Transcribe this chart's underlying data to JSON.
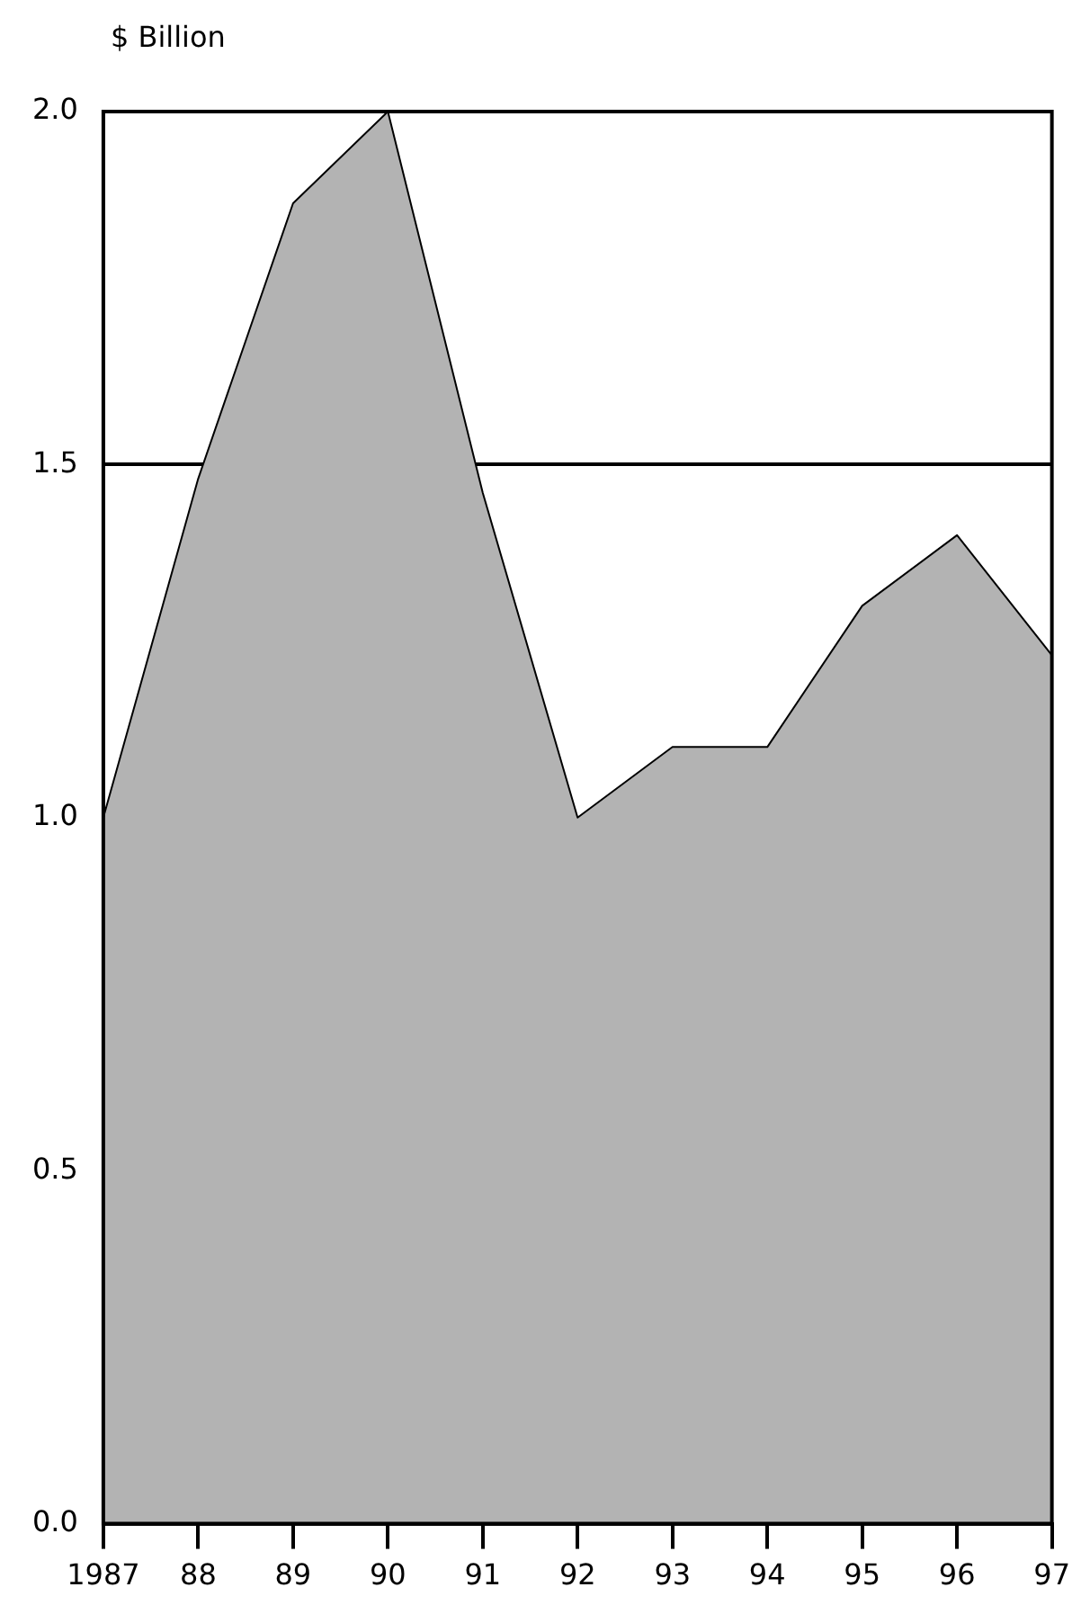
{
  "chart_data": {
    "type": "area",
    "ylabel": "$ Billion",
    "categories": [
      "1987",
      "88",
      "89",
      "90",
      "91",
      "92",
      "93",
      "94",
      "95",
      "96",
      "97"
    ],
    "series": [
      {
        "color": "#b3b3b3",
        "values": [
          1.0,
          1.48,
          1.87,
          2.0,
          1.46,
          1.0,
          1.1,
          1.1,
          1.3,
          1.4,
          1.23
        ]
      }
    ],
    "ylim": [
      0,
      2
    ],
    "yticks": [
      {
        "value": 0,
        "label": "0.0"
      },
      {
        "value": 0.5,
        "label": "0.5"
      },
      {
        "value": 1,
        "label": "1.0"
      },
      {
        "value": 1.5,
        "label": "1.5"
      },
      {
        "value": 2,
        "label": "2.0"
      }
    ],
    "grid": "y",
    "legend": false,
    "marker": "none",
    "line_style": "solid"
  }
}
